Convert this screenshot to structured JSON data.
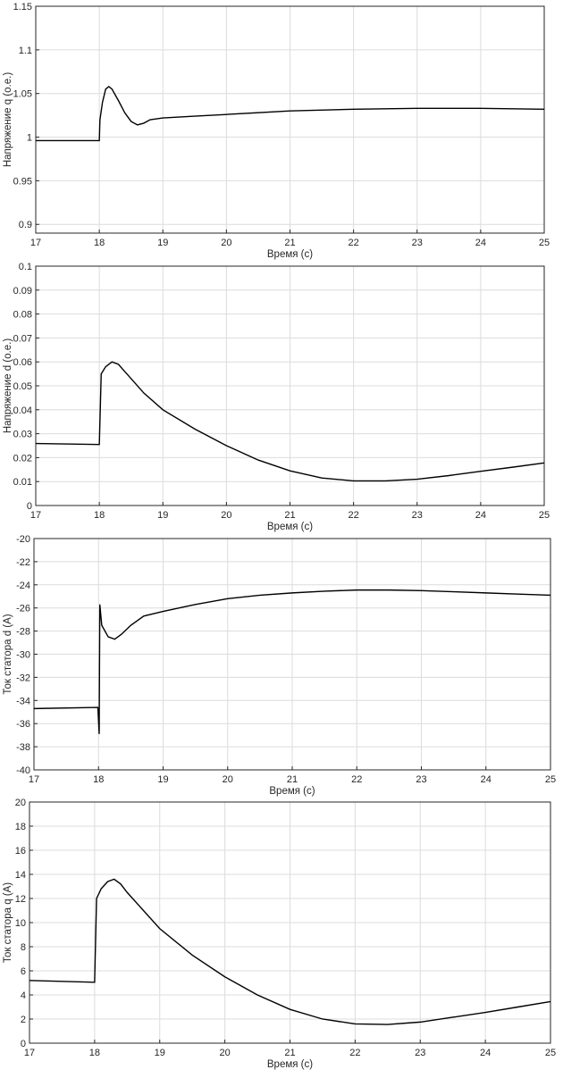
{
  "chart_data": [
    {
      "type": "line",
      "xlabel": "Время (с)",
      "ylabel": "Напряжение q (о.е.)",
      "xlim": [
        17,
        25
      ],
      "ylim": [
        0.89,
        1.15
      ],
      "xticks": [
        "17",
        "18",
        "19",
        "20",
        "21",
        "22",
        "23",
        "24",
        "25"
      ],
      "yticks": [
        "0.9",
        "0.95",
        "1",
        "1.05",
        "1.1",
        "1.15"
      ],
      "grid": true,
      "series": [
        {
          "x": [
            17,
            18.0,
            18.01,
            18.05,
            18.1,
            18.15,
            18.2,
            18.3,
            18.4,
            18.5,
            18.6,
            18.7,
            18.8,
            19.0,
            19.5,
            20,
            21,
            22,
            23,
            24,
            25
          ],
          "y": [
            0.996,
            0.996,
            1.02,
            1.04,
            1.055,
            1.058,
            1.055,
            1.042,
            1.028,
            1.018,
            1.014,
            1.016,
            1.02,
            1.022,
            1.024,
            1.026,
            1.03,
            1.032,
            1.033,
            1.033,
            1.032
          ]
        }
      ]
    },
    {
      "type": "line",
      "xlabel": "Время (с)",
      "ylabel": "Напряжение d (о.е.)",
      "xlim": [
        17,
        25
      ],
      "ylim": [
        0,
        0.1
      ],
      "xticks": [
        "17",
        "18",
        "19",
        "20",
        "21",
        "22",
        "23",
        "24",
        "25"
      ],
      "yticks": [
        "0",
        "0.01",
        "0.02",
        "0.03",
        "0.04",
        "0.05",
        "0.06",
        "0.07",
        "0.08",
        "0.09",
        "0.1"
      ],
      "grid": true,
      "series": [
        {
          "x": [
            17,
            18.0,
            18.03,
            18.1,
            18.2,
            18.3,
            18.4,
            18.5,
            18.7,
            19.0,
            19.5,
            20,
            20.5,
            21,
            21.5,
            22,
            22.5,
            23,
            23.5,
            24,
            24.5,
            25
          ],
          "y": [
            0.0259,
            0.0255,
            0.055,
            0.058,
            0.06,
            0.059,
            0.056,
            0.053,
            0.047,
            0.04,
            0.032,
            0.025,
            0.019,
            0.0145,
            0.0115,
            0.0103,
            0.0103,
            0.011,
            0.0125,
            0.0143,
            0.016,
            0.0178
          ]
        }
      ]
    },
    {
      "type": "line",
      "xlabel": "Время (с)",
      "ylabel": "Ток статора d (A)",
      "xlim": [
        17,
        25
      ],
      "ylim": [
        -40,
        -20
      ],
      "xticks": [
        "17",
        "18",
        "19",
        "20",
        "21",
        "22",
        "23",
        "24",
        "25"
      ],
      "yticks": [
        "-40",
        "-38",
        "-36",
        "-34",
        "-32",
        "-30",
        "-28",
        "-26",
        "-24",
        "-22",
        "-20"
      ],
      "grid": true,
      "series": [
        {
          "x": [
            17,
            17.99,
            18.01,
            18.02,
            18.05,
            18.15,
            18.25,
            18.35,
            18.5,
            18.7,
            19.0,
            19.5,
            20,
            20.5,
            21,
            21.5,
            22,
            22.5,
            23,
            23.5,
            24,
            24.5,
            25
          ],
          "y": [
            -34.7,
            -34.6,
            -36.9,
            -25.7,
            -27.5,
            -28.5,
            -28.7,
            -28.3,
            -27.5,
            -26.7,
            -26.3,
            -25.7,
            -25.2,
            -24.9,
            -24.7,
            -24.55,
            -24.45,
            -24.45,
            -24.5,
            -24.6,
            -24.7,
            -24.8,
            -24.9
          ]
        }
      ]
    },
    {
      "type": "line",
      "xlabel": "Время (с)",
      "ylabel": "Ток статора q (A)",
      "xlim": [
        17,
        25
      ],
      "ylim": [
        0,
        20
      ],
      "xticks": [
        "17",
        "18",
        "19",
        "20",
        "21",
        "22",
        "23",
        "24",
        "25"
      ],
      "yticks": [
        "0",
        "2",
        "4",
        "6",
        "8",
        "10",
        "12",
        "14",
        "16",
        "18",
        "20"
      ],
      "grid": true,
      "series": [
        {
          "x": [
            17,
            18.0,
            18.03,
            18.1,
            18.2,
            18.3,
            18.4,
            18.5,
            18.7,
            19.0,
            19.5,
            20,
            20.5,
            21,
            21.5,
            22,
            22.5,
            23,
            23.5,
            24,
            24.5,
            25
          ],
          "y": [
            5.2,
            5.05,
            12.0,
            12.8,
            13.4,
            13.6,
            13.2,
            12.5,
            11.3,
            9.5,
            7.3,
            5.5,
            4.0,
            2.8,
            2.0,
            1.6,
            1.55,
            1.75,
            2.15,
            2.55,
            3.0,
            3.45
          ]
        }
      ]
    }
  ]
}
